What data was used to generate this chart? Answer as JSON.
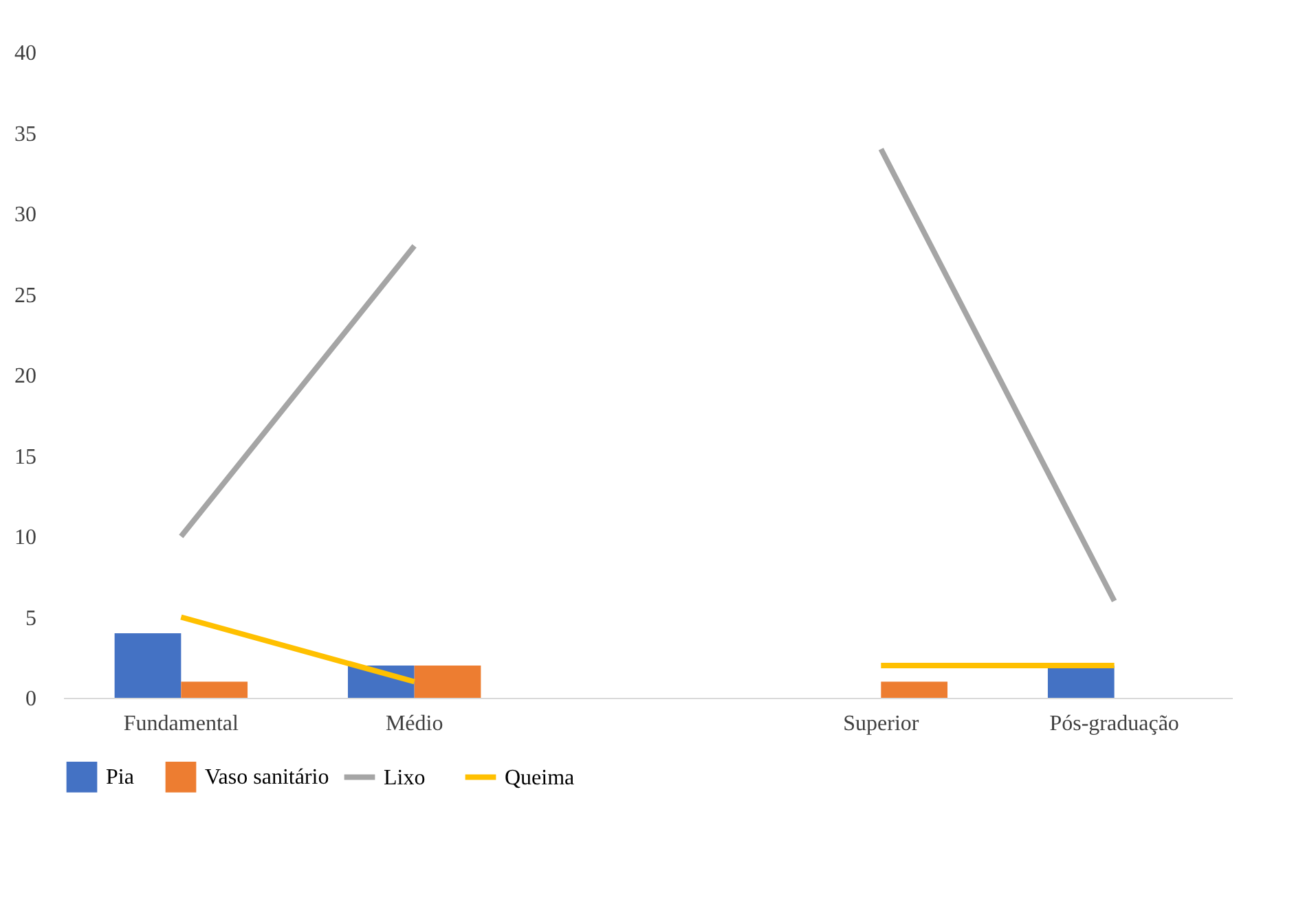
{
  "chart_data": {
    "type": "bar",
    "categories": [
      "Fundamental",
      "Médio",
      null,
      "Superior",
      "Pós-graduação"
    ],
    "series": [
      {
        "name": "Pia",
        "color": "#4472c4",
        "values": [
          4,
          2,
          null,
          null,
          2
        ]
      },
      {
        "name": "Vaso sanitário",
        "color": "#ed7d31",
        "values": [
          1,
          2,
          null,
          1,
          null
        ]
      },
      {
        "name": "Lixo",
        "type": "line",
        "color": "#a5a5a5",
        "values": [
          10,
          28,
          null,
          34,
          6
        ]
      },
      {
        "name": "Queima",
        "type": "line",
        "color": "#ffc000",
        "values": [
          5,
          1,
          null,
          2,
          2
        ]
      }
    ],
    "ylim": [
      0,
      40
    ],
    "yticks": [
      0,
      5,
      10,
      15,
      20,
      25,
      30,
      35,
      40
    ],
    "grid": false,
    "legend": "bottom"
  }
}
